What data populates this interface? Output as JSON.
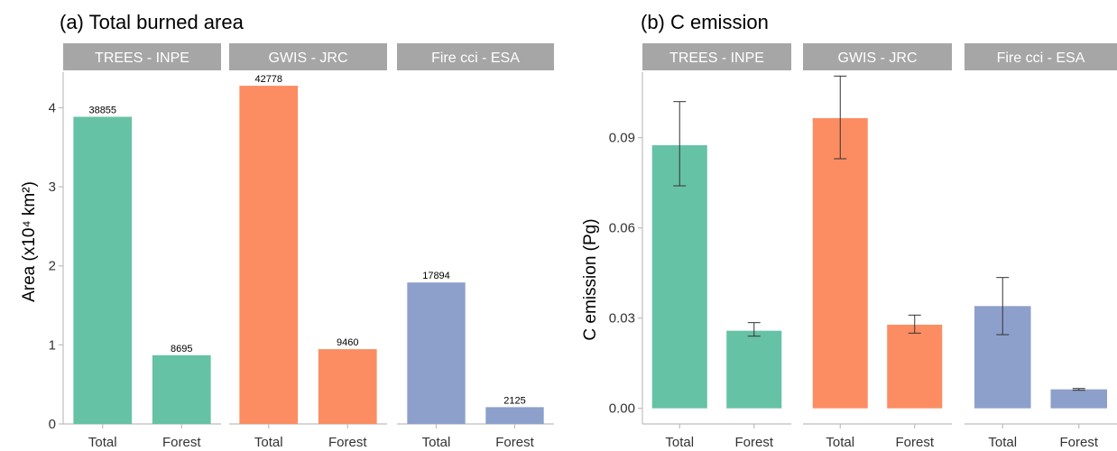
{
  "colors": {
    "trees": "#66c2a5",
    "gwis": "#fc8d62",
    "firecci": "#8da0cb",
    "strip": "#a6a6a6",
    "axis": "#bdbdbd",
    "errorbar": "#333333"
  },
  "chart_data": [
    {
      "type": "bar",
      "title": "(a) Total burned area",
      "ylabel": "Area (x10⁴ km²)",
      "ylim": [
        0,
        4.45
      ],
      "yticks": [
        0,
        1,
        2,
        3,
        4
      ],
      "grid": false,
      "facets": [
        {
          "label": "TREES - INPE",
          "categories": [
            "Total",
            "Forest"
          ],
          "values": [
            3.8855,
            0.8695
          ],
          "data_labels": [
            "38855",
            "8695"
          ]
        },
        {
          "label": "GWIS - JRC",
          "categories": [
            "Total",
            "Forest"
          ],
          "values": [
            4.2778,
            0.946
          ],
          "data_labels": [
            "42778",
            "9460"
          ]
        },
        {
          "label": "Fire cci - ESA",
          "categories": [
            "Total",
            "Forest"
          ],
          "values": [
            1.7894,
            0.2125
          ],
          "data_labels": [
            "17894",
            "2125"
          ]
        }
      ]
    },
    {
      "type": "bar",
      "title": "(b) C emission",
      "ylabel": "C emission (Pg)",
      "ylim": [
        -0.0052,
        0.1118
      ],
      "yticks": [
        "0.00",
        "0.03",
        "0.06",
        "0.09"
      ],
      "grid": false,
      "facets": [
        {
          "label": "TREES - INPE",
          "categories": [
            "Total",
            "Forest"
          ],
          "values": [
            0.0875,
            0.0258
          ],
          "error_low": [
            0.074,
            0.024
          ],
          "error_high": [
            0.102,
            0.0285
          ]
        },
        {
          "label": "GWIS - JRC",
          "categories": [
            "Total",
            "Forest"
          ],
          "values": [
            0.0965,
            0.0278
          ],
          "error_low": [
            0.083,
            0.025
          ],
          "error_high": [
            0.1105,
            0.031
          ]
        },
        {
          "label": "Fire cci - ESA",
          "categories": [
            "Total",
            "Forest"
          ],
          "values": [
            0.034,
            0.0063
          ],
          "error_low": [
            0.0245,
            0.006
          ],
          "error_high": [
            0.0435,
            0.0066
          ]
        }
      ]
    }
  ]
}
